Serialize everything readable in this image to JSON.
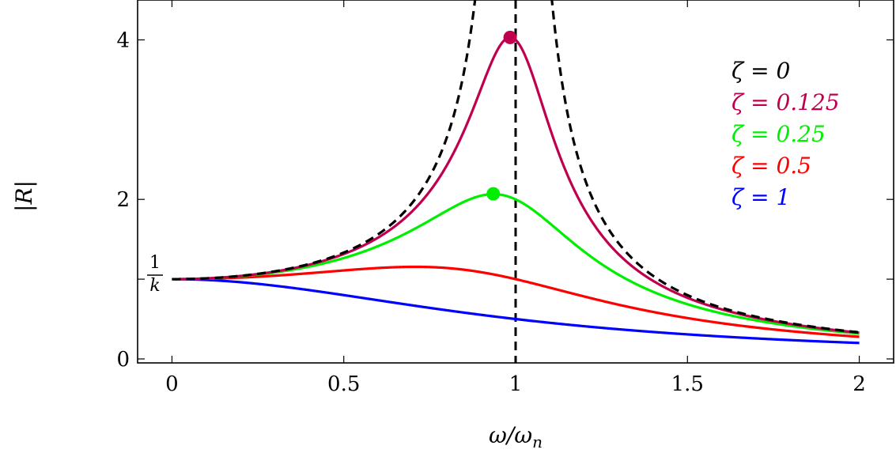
{
  "chart_data": {
    "type": "line",
    "xlabel": "ω/ω",
    "xlabel_sub": "n",
    "ylabel": "|R|",
    "xlim": [
      -0.1,
      2.1
    ],
    "ylim": [
      -0.05,
      4.5
    ],
    "xticks": [
      {
        "value": 0,
        "label": "0"
      },
      {
        "value": 0.5,
        "label": "0.5"
      },
      {
        "value": 1,
        "label": "1"
      },
      {
        "value": 1.5,
        "label": "1.5"
      },
      {
        "value": 2,
        "label": "2"
      }
    ],
    "yticks": [
      {
        "value": 0,
        "label": "0"
      },
      {
        "value": 2,
        "label": "2"
      },
      {
        "value": 4,
        "label": "4"
      }
    ],
    "y_special_tick": {
      "value": 1,
      "numerator": "1",
      "denominator": "k"
    },
    "resonance_line": {
      "x": 1,
      "style": "dashed",
      "color": "#000000"
    },
    "legend_position": "top-right",
    "series": [
      {
        "name": "ζ = 0",
        "zeta": 0,
        "color": "#000000",
        "style": "dashed",
        "x": [
          0,
          0.25,
          0.5,
          0.75,
          0.9,
          1.1,
          1.25,
          1.5,
          2
        ],
        "y": [
          1.0,
          1.07,
          1.33,
          2.29,
          5.26,
          4.76,
          1.78,
          0.8,
          0.33
        ]
      },
      {
        "name": "ζ = 0.125",
        "zeta": 0.125,
        "color": "#C0004E",
        "style": "solid",
        "x": [
          0,
          0.25,
          0.5,
          0.75,
          0.9,
          0.984,
          1.1,
          1.25,
          1.5,
          2
        ],
        "y": [
          1.0,
          1.06,
          1.3,
          2.07,
          3.15,
          4.03,
          2.98,
          1.6,
          0.76,
          0.33
        ]
      },
      {
        "name": "ζ = 0.25",
        "zeta": 0.25,
        "color": "#00EE00",
        "style": "solid",
        "x": [
          0,
          0.25,
          0.5,
          0.75,
          0.935,
          1.1,
          1.25,
          1.5,
          2
        ],
        "y": [
          1.0,
          1.06,
          1.24,
          1.69,
          2.07,
          1.76,
          1.24,
          0.68,
          0.31
        ]
      },
      {
        "name": "ζ = 0.5",
        "zeta": 0.5,
        "color": "#FF0000",
        "style": "solid",
        "x": [
          0,
          0.25,
          0.5,
          0.707,
          1,
          1.25,
          1.5,
          2
        ],
        "y": [
          1.0,
          1.03,
          1.11,
          1.15,
          1.0,
          0.79,
          0.55,
          0.28
        ]
      },
      {
        "name": "ζ = 1",
        "zeta": 1,
        "color": "#0000FF",
        "style": "solid",
        "x": [
          0,
          0.25,
          0.5,
          0.75,
          1,
          1.5,
          2
        ],
        "y": [
          1.0,
          0.94,
          0.8,
          0.64,
          0.5,
          0.31,
          0.2
        ]
      }
    ],
    "markers": [
      {
        "x": 0.984,
        "y": 4.03,
        "color": "#C0004E"
      },
      {
        "x": 0.935,
        "y": 2.07,
        "color": "#00EE00"
      }
    ]
  }
}
